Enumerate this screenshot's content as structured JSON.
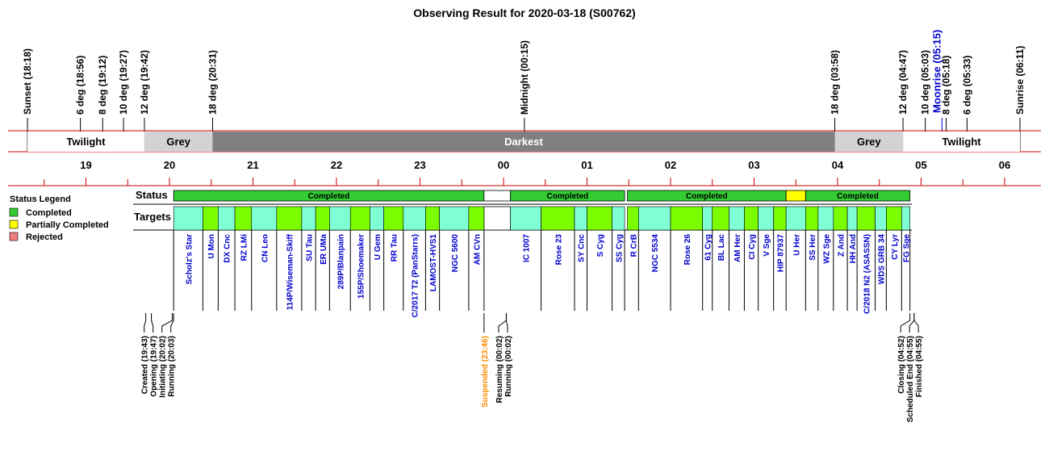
{
  "title": "Observing Result for 2020-03-18 (S00762)",
  "colors": {
    "completed": "#33cc33",
    "partial": "#ffff00",
    "rejected": "#f08080",
    "target_cyan": "#7fffd4",
    "target_green": "#7cfc00",
    "twilight": "#ffffff",
    "grey": "#d3d3d3",
    "darkest": "#808080",
    "red_line": "#cc0000",
    "target_text": "#0000cc",
    "suspended_text": "#ff8c00"
  },
  "sky_events": [
    {
      "label": "Sunset (18:18)",
      "time": "18:18"
    },
    {
      "label": "6 deg (18:56)",
      "time": "18:56"
    },
    {
      "label": "8 deg (19:12)",
      "time": "19:12"
    },
    {
      "label": "10 deg (19:27)",
      "time": "19:27"
    },
    {
      "label": "12 deg (19:42)",
      "time": "19:42"
    },
    {
      "label": "18 deg (20:31)",
      "time": "20:31"
    },
    {
      "label": "Midnight (00:15)",
      "time": "00:15"
    },
    {
      "label": "18 deg (03:58)",
      "time": "03:58"
    },
    {
      "label": "12 deg (04:47)",
      "time": "04:47"
    },
    {
      "label": "10 deg (05:03)",
      "time": "05:03"
    },
    {
      "label": "Moonrise (05:15)",
      "time": "05:15",
      "moon": true
    },
    {
      "label": "8 deg (05:18)",
      "time": "05:18"
    },
    {
      "label": "6 deg (05:33)",
      "time": "05:33"
    },
    {
      "label": "Sunrise (06:11)",
      "time": "06:11"
    }
  ],
  "bands": [
    {
      "label": "Twilight",
      "start": "18:18",
      "end": "19:42",
      "kind": "twilight"
    },
    {
      "label": "Grey",
      "start": "19:42",
      "end": "20:31",
      "kind": "grey"
    },
    {
      "label": "Darkest",
      "start": "20:31",
      "end": "03:58",
      "kind": "darkest"
    },
    {
      "label": "Grey",
      "start": "03:58",
      "end": "04:47",
      "kind": "grey"
    },
    {
      "label": "Twilight",
      "start": "04:47",
      "end": "06:11",
      "kind": "twilight"
    }
  ],
  "hour_labels": [
    "19",
    "20",
    "21",
    "22",
    "23",
    "00",
    "01",
    "02",
    "03",
    "04",
    "05",
    "06"
  ],
  "row_labels": {
    "status": "Status",
    "targets": "Targets"
  },
  "legend": {
    "title": "Status Legend",
    "items": [
      {
        "label": "Completed",
        "color": "#33cc33"
      },
      {
        "label": "Partially Completed",
        "color": "#ffff00"
      },
      {
        "label": "Rejected",
        "color": "#f08080"
      }
    ]
  },
  "status_segments": [
    {
      "label": "Completed",
      "start": "20:03",
      "end": "23:46",
      "state": "completed"
    },
    {
      "label": "",
      "start": "23:46",
      "end": "00:05",
      "state": "none"
    },
    {
      "label": "Completed",
      "start": "00:05",
      "end": "01:27",
      "state": "completed"
    },
    {
      "label": "Completed",
      "start": "01:29",
      "end": "03:23",
      "state": "completed"
    },
    {
      "label": "",
      "start": "03:23",
      "end": "03:37",
      "state": "partial"
    },
    {
      "label": "Completed",
      "start": "03:37",
      "end": "04:52",
      "state": "completed"
    }
  ],
  "targets": [
    {
      "name": "Scholz's Star",
      "start": "20:03",
      "end": "20:24",
      "c": "cyan"
    },
    {
      "name": "U Mon",
      "start": "20:24",
      "end": "20:35",
      "c": "green"
    },
    {
      "name": "DX Cnc",
      "start": "20:35",
      "end": "20:47",
      "c": "cyan"
    },
    {
      "name": "RZ LMi",
      "start": "20:47",
      "end": "20:59",
      "c": "green"
    },
    {
      "name": "CN Leo",
      "start": "20:59",
      "end": "21:17",
      "c": "cyan"
    },
    {
      "name": "114P/Wiseman-Skiff",
      "start": "21:17",
      "end": "21:35",
      "c": "green"
    },
    {
      "name": "SU Tau",
      "start": "21:35",
      "end": "21:45",
      "c": "cyan"
    },
    {
      "name": "ER UMa",
      "start": "21:45",
      "end": "21:55",
      "c": "green"
    },
    {
      "name": "289P/Blanpain",
      "start": "21:55",
      "end": "22:10",
      "c": "cyan"
    },
    {
      "name": "155P/Shoemaker",
      "start": "22:10",
      "end": "22:24",
      "c": "green"
    },
    {
      "name": "U Gem",
      "start": "22:24",
      "end": "22:34",
      "c": "cyan"
    },
    {
      "name": "RR Tau",
      "start": "22:34",
      "end": "22:48",
      "c": "green"
    },
    {
      "name": "C/2017 T2 (PanStarrs)",
      "start": "22:48",
      "end": "23:04",
      "c": "cyan"
    },
    {
      "name": "LAMOST-HVS1",
      "start": "23:04",
      "end": "23:14",
      "c": "green"
    },
    {
      "name": "NGC 5600",
      "start": "23:14",
      "end": "23:35",
      "c": "cyan"
    },
    {
      "name": "AM CVn",
      "start": "23:35",
      "end": "23:46",
      "c": "green"
    },
    {
      "name": "IC 1007",
      "start": "00:05",
      "end": "00:27",
      "c": "cyan"
    },
    {
      "name": "Rose 23",
      "start": "00:27",
      "end": "00:51",
      "c": "green"
    },
    {
      "name": "SY Cnc",
      "start": "00:51",
      "end": "01:00",
      "c": "cyan"
    },
    {
      "name": "S Cyg",
      "start": "01:00",
      "end": "01:18",
      "c": "green"
    },
    {
      "name": "SS Cyg",
      "start": "01:18",
      "end": "01:27",
      "c": "cyan"
    },
    {
      "name": "R CrB",
      "start": "01:29",
      "end": "01:37",
      "c": "green"
    },
    {
      "name": "NGC 5534",
      "start": "01:37",
      "end": "02:00",
      "c": "cyan"
    },
    {
      "name": "Rose 26",
      "start": "02:00",
      "end": "02:23",
      "c": "green"
    },
    {
      "name": "61 Cyg",
      "start": "02:23",
      "end": "02:30",
      "c": "cyan"
    },
    {
      "name": "BL Lac",
      "start": "02:30",
      "end": "02:42",
      "c": "green"
    },
    {
      "name": "AM Her",
      "start": "02:42",
      "end": "02:53",
      "c": "cyan"
    },
    {
      "name": "CI Cyg",
      "start": "02:53",
      "end": "03:03",
      "c": "green"
    },
    {
      "name": "V Sge",
      "start": "03:03",
      "end": "03:14",
      "c": "cyan"
    },
    {
      "name": "HIP 87937",
      "start": "03:14",
      "end": "03:23",
      "c": "green"
    },
    {
      "name": "U Her",
      "start": "03:23",
      "end": "03:37",
      "c": "cyan"
    },
    {
      "name": "SS Her",
      "start": "03:37",
      "end": "03:46",
      "c": "green"
    },
    {
      "name": "WZ Sge",
      "start": "03:46",
      "end": "03:57",
      "c": "cyan"
    },
    {
      "name": "Z And",
      "start": "03:57",
      "end": "04:07",
      "c": "green"
    },
    {
      "name": "HH And",
      "start": "04:07",
      "end": "04:14",
      "c": "cyan"
    },
    {
      "name": "C/2018 N2 (ASASSN)",
      "start": "04:14",
      "end": "04:27",
      "c": "green"
    },
    {
      "name": "WDS GRB 34",
      "start": "04:27",
      "end": "04:35",
      "c": "cyan"
    },
    {
      "name": "CY Lyr",
      "start": "04:35",
      "end": "04:46",
      "c": "green"
    },
    {
      "name": "FG Sge",
      "start": "04:46",
      "end": "04:52",
      "c": "cyan"
    }
  ],
  "operation_events": [
    {
      "label": "Created (19:43)",
      "time": "19:43"
    },
    {
      "label": "Opening (19:47)",
      "time": "19:47"
    },
    {
      "label": "Initiating (20:02)",
      "time": "20:02"
    },
    {
      "label": "Running (20:03)",
      "time": "20:03"
    },
    {
      "label": "Suspended (23:46)",
      "time": "23:46",
      "suspended": true
    },
    {
      "label": "Resuming (00:02)",
      "time": "00:02"
    },
    {
      "label": "Running (00:02)",
      "time": "00:02"
    },
    {
      "label": "Closing (04:52)",
      "time": "04:52"
    },
    {
      "label": "Scheduled End (04:55)",
      "time": "04:55"
    },
    {
      "label": "Finished (04:55)",
      "time": "04:55"
    }
  ]
}
